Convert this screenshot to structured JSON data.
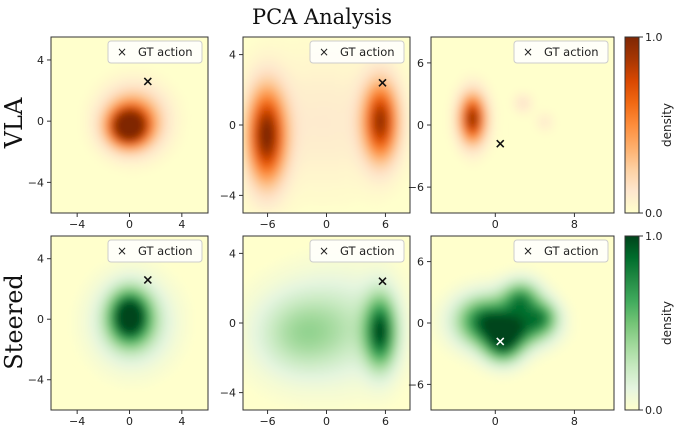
{
  "chart_data": {
    "type": "heatmap",
    "title": "PCA Analysis",
    "rows": [
      {
        "label": "VLA",
        "colormap": "Oranges",
        "colorbar": {
          "label": "density",
          "min_label": "0.0",
          "max_label": "1.0"
        }
      },
      {
        "label": "Steered",
        "colormap": "Greens",
        "colorbar": {
          "label": "density",
          "min_label": "0.0",
          "max_label": "1.0"
        }
      }
    ],
    "legend": {
      "marker": "×",
      "label": "GT action",
      "position": "top-right"
    },
    "columns": [
      {
        "xlim": [
          -6,
          6
        ],
        "ylim": [
          -6,
          5.5
        ],
        "xticks": [
          -4,
          0,
          4
        ],
        "yticks": [
          -4,
          0,
          4
        ],
        "gt_action": [
          1.4,
          2.6
        ]
      },
      {
        "xlim": [
          -8.5,
          8.5
        ],
        "ylim": [
          -5,
          5
        ],
        "xticks": [
          -6,
          0,
          6
        ],
        "yticks": [
          -4,
          0,
          4
        ],
        "gt_action": [
          5.7,
          2.4
        ]
      },
      {
        "xlim": [
          -6.5,
          12
        ],
        "ylim": [
          -8.5,
          8.5
        ],
        "xticks": [
          0,
          8
        ],
        "yticks": [
          -6,
          0,
          6
        ],
        "gt_action": [
          0.5,
          -1.8
        ]
      }
    ],
    "panels": [
      {
        "row": 0,
        "col": 0,
        "blobs": [
          [
            -0.1,
            -0.4,
            1.0,
            0.8,
            1.0
          ],
          [
            0.3,
            0.1,
            1.5,
            1.3,
            0.55
          ]
        ]
      },
      {
        "row": 0,
        "col": 1,
        "blobs": [
          [
            -6.1,
            -0.6,
            1.3,
            1.8,
            1.0
          ],
          [
            5.5,
            0.2,
            1.2,
            1.5,
            0.9
          ],
          [
            -0.3,
            0.2,
            4.5,
            2.5,
            0.1
          ]
        ]
      },
      {
        "row": 0,
        "col": 2,
        "blobs": [
          [
            -2.3,
            0.6,
            0.9,
            1.6,
            0.95
          ],
          [
            2.8,
            2.1,
            0.6,
            0.6,
            0.15
          ],
          [
            5.0,
            0.3,
            0.6,
            0.6,
            0.1
          ]
        ]
      },
      {
        "row": 1,
        "col": 0,
        "blobs": [
          [
            0.0,
            0.2,
            1.0,
            1.1,
            0.95
          ],
          [
            0.2,
            -0.2,
            1.8,
            1.7,
            0.4
          ]
        ]
      },
      {
        "row": 1,
        "col": 1,
        "blobs": [
          [
            5.5,
            -0.5,
            1.1,
            1.4,
            0.9
          ],
          [
            -3.0,
            -0.6,
            3.0,
            1.6,
            0.3
          ],
          [
            1.5,
            -0.2,
            3.5,
            2.0,
            0.22
          ]
        ]
      },
      {
        "row": 1,
        "col": 2,
        "blobs": [
          [
            -1.0,
            0.2,
            2.0,
            1.6,
            0.85
          ],
          [
            2.6,
            2.3,
            1.3,
            1.2,
            0.7
          ],
          [
            4.8,
            0.6,
            1.1,
            1.1,
            0.55
          ],
          [
            0.8,
            -2.2,
            1.3,
            1.2,
            0.7
          ],
          [
            2.3,
            -0.6,
            2.0,
            1.2,
            0.65
          ]
        ]
      }
    ]
  },
  "colors": {
    "oranges": [
      "#fff5eb",
      "#fee6ce",
      "#fdd0a2",
      "#fdae6b",
      "#fd8d3c",
      "#f16913",
      "#d94801",
      "#a63603",
      "#7f2704"
    ],
    "greens": [
      "#f7fcf5",
      "#e5f5e0",
      "#c7e9c0",
      "#a1d99b",
      "#74c476",
      "#41ab5d",
      "#238b45",
      "#006d2c",
      "#00441b"
    ],
    "ylorrd_base": "#ffffcc"
  }
}
